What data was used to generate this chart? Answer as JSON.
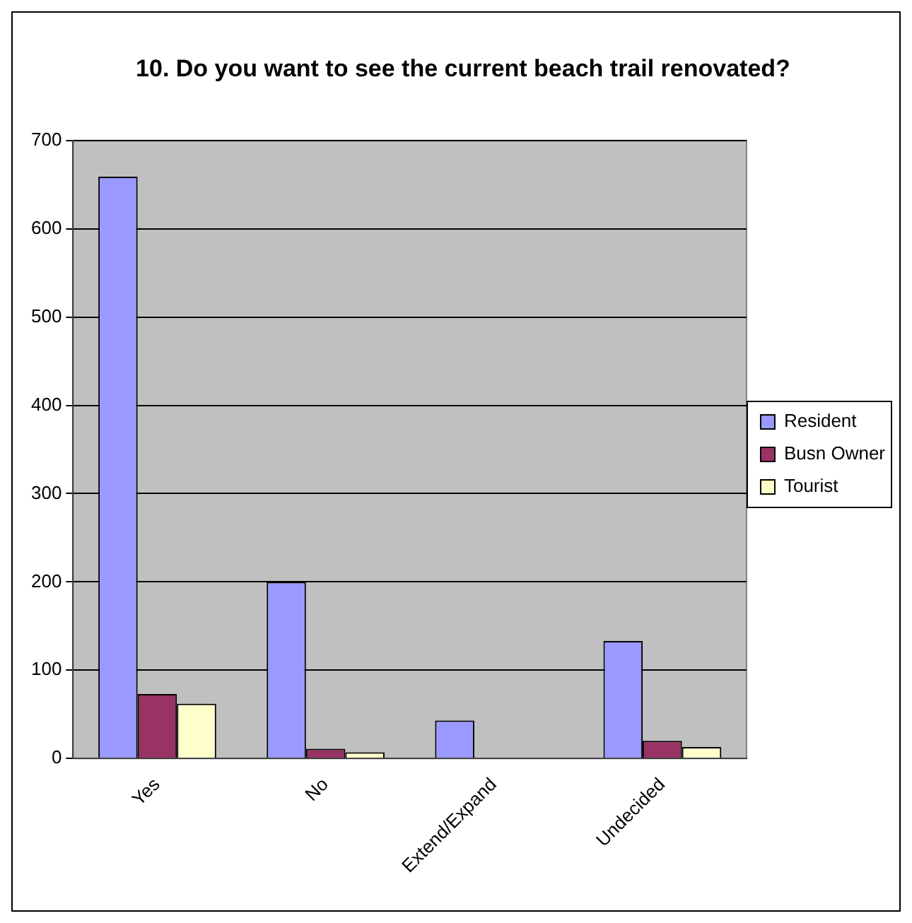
{
  "chart_data": {
    "type": "bar",
    "title": "10. Do you want to see the current beach trail renovated?",
    "categories": [
      "Yes",
      "No",
      "Extend/Expand",
      "Undecided"
    ],
    "series": [
      {
        "name": "Resident",
        "color": "#9999ff",
        "values": [
          659,
          200,
          43,
          133
        ]
      },
      {
        "name": "Busn Owner",
        "color": "#993366",
        "values": [
          73,
          11,
          0,
          20
        ]
      },
      {
        "name": "Tourist",
        "color": "#ffffcc",
        "values": [
          62,
          7,
          0,
          13
        ]
      }
    ],
    "ylim": [
      0,
      700
    ],
    "yticks": [
      0,
      100,
      200,
      300,
      400,
      500,
      600,
      700
    ],
    "grid": "y",
    "legend": "right"
  }
}
